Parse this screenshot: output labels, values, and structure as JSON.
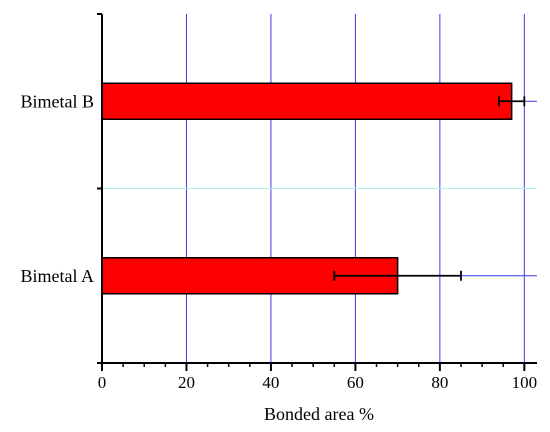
{
  "chart_data": {
    "type": "bar",
    "orientation": "horizontal",
    "categories": [
      "Bimetal A",
      "Bimetal B"
    ],
    "values": [
      70,
      97
    ],
    "errors": [
      15,
      3
    ],
    "xlabel": "Bonded area %",
    "ylabel": "",
    "xlim": [
      0,
      103
    ],
    "xticks": [
      0,
      20,
      40,
      60,
      80,
      100
    ],
    "grid": true,
    "colors": {
      "bar_fill": "#ff0000",
      "bar_stroke": "#000000",
      "grid": "#3a3af0",
      "category_separator": "#aef0f0",
      "axis": "#000000"
    }
  }
}
